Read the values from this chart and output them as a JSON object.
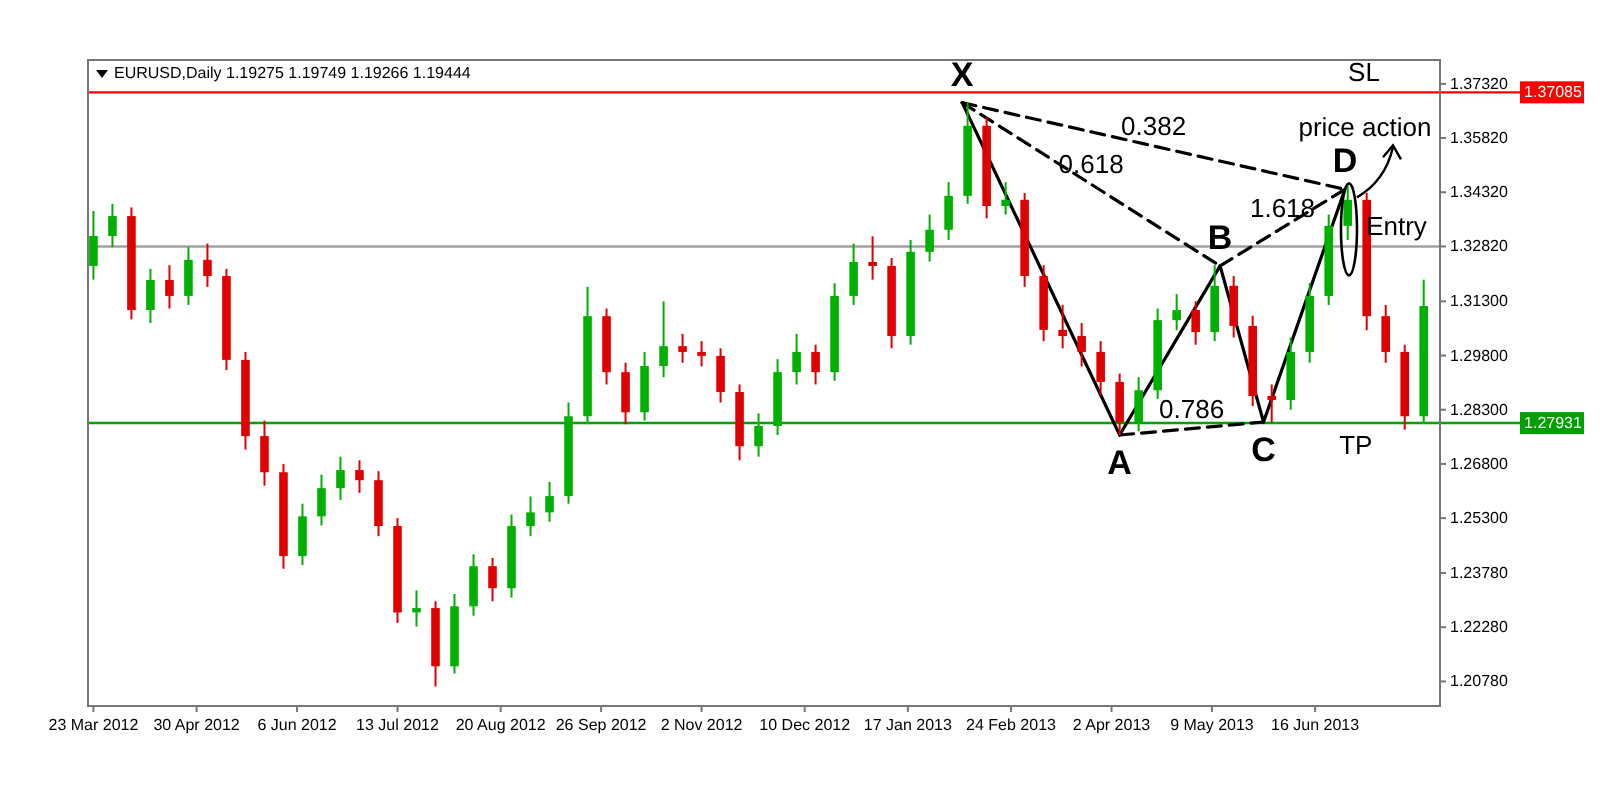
{
  "chart_data": {
    "type": "candlestick",
    "title": "EURUSD,Daily  1.19275 1.19749 1.19266 1.19444",
    "x": [
      "2012-03-23",
      "2012-03-30",
      "2012-04-06",
      "2012-04-13",
      "2012-04-20",
      "2012-04-27",
      "2012-05-04",
      "2012-05-11",
      "2012-05-18",
      "2012-05-25",
      "2012-06-01",
      "2012-06-08",
      "2012-06-15",
      "2012-06-22",
      "2012-06-29",
      "2012-07-06",
      "2012-07-13",
      "2012-07-20",
      "2012-07-27",
      "2012-08-03",
      "2012-08-10",
      "2012-08-17",
      "2012-08-24",
      "2012-08-31",
      "2012-09-07",
      "2012-09-14",
      "2012-09-21",
      "2012-09-28",
      "2012-10-05",
      "2012-10-12",
      "2012-10-19",
      "2012-10-26",
      "2012-11-02",
      "2012-11-09",
      "2012-11-16",
      "2012-11-23",
      "2012-11-30",
      "2012-12-07",
      "2012-12-14",
      "2012-12-21",
      "2012-12-28",
      "2013-01-04",
      "2013-01-11",
      "2013-01-18",
      "2013-01-25",
      "2013-02-01",
      "2013-02-08",
      "2013-02-15",
      "2013-02-22",
      "2013-03-01",
      "2013-03-08",
      "2013-03-15",
      "2013-03-22",
      "2013-03-29",
      "2013-04-05",
      "2013-04-12",
      "2013-04-19",
      "2013-04-26",
      "2013-05-03",
      "2013-05-10",
      "2013-05-17",
      "2013-05-24",
      "2013-05-31",
      "2013-06-07",
      "2013-06-14",
      "2013-06-21",
      "2013-06-28",
      "2013-07-05",
      "2013-07-12",
      "2013-07-19",
      "2013-07-26"
    ],
    "ohlc": [
      [
        1.3228,
        1.338,
        1.319,
        1.3311
      ],
      [
        1.3311,
        1.34,
        1.328,
        1.3366
      ],
      [
        1.3366,
        1.339,
        1.308,
        1.3106
      ],
      [
        1.3106,
        1.322,
        1.307,
        1.3189
      ],
      [
        1.3189,
        1.323,
        1.311,
        1.3145
      ],
      [
        1.3145,
        1.328,
        1.312,
        1.3245
      ],
      [
        1.3245,
        1.329,
        1.317,
        1.32
      ],
      [
        1.32,
        1.322,
        1.294,
        1.2968
      ],
      [
        1.2968,
        1.299,
        1.272,
        1.2757
      ],
      [
        1.2757,
        1.28,
        1.262,
        1.2657
      ],
      [
        1.2657,
        1.268,
        1.239,
        1.2425
      ],
      [
        1.2425,
        1.257,
        1.24,
        1.2535
      ],
      [
        1.2535,
        1.265,
        1.251,
        1.2613
      ],
      [
        1.2613,
        1.27,
        1.258,
        1.2663
      ],
      [
        1.2663,
        1.269,
        1.26,
        1.2635
      ],
      [
        1.2635,
        1.266,
        1.248,
        1.2508
      ],
      [
        1.2508,
        1.253,
        1.224,
        1.2269
      ],
      [
        1.2269,
        1.233,
        1.223,
        1.2281
      ],
      [
        1.2281,
        1.23,
        1.2064,
        1.212
      ],
      [
        1.212,
        1.232,
        1.21,
        1.2286
      ],
      [
        1.2286,
        1.243,
        1.226,
        1.2397
      ],
      [
        1.2397,
        1.242,
        1.23,
        1.2336
      ],
      [
        1.2336,
        1.254,
        1.231,
        1.2508
      ],
      [
        1.2508,
        1.259,
        1.248,
        1.2546
      ],
      [
        1.2546,
        1.263,
        1.252,
        1.2591
      ],
      [
        1.2591,
        1.285,
        1.257,
        1.2812
      ],
      [
        1.2812,
        1.317,
        1.279,
        1.3089
      ],
      [
        1.3089,
        1.311,
        1.29,
        1.2934
      ],
      [
        1.2934,
        1.296,
        1.279,
        1.2823
      ],
      [
        1.2823,
        1.299,
        1.28,
        1.2951
      ],
      [
        1.2951,
        1.313,
        1.292,
        1.3006
      ],
      [
        1.3006,
        1.304,
        1.296,
        1.299
      ],
      [
        1.299,
        1.302,
        1.295,
        1.2979
      ],
      [
        1.2979,
        1.3,
        1.285,
        1.2879
      ],
      [
        1.2879,
        1.29,
        1.269,
        1.2729
      ],
      [
        1.2729,
        1.282,
        1.27,
        1.2785
      ],
      [
        1.2785,
        1.297,
        1.276,
        1.2934
      ],
      [
        1.2934,
        1.304,
        1.29,
        1.299
      ],
      [
        1.299,
        1.301,
        1.29,
        1.2934
      ],
      [
        1.2934,
        1.318,
        1.291,
        1.3145
      ],
      [
        1.3145,
        1.329,
        1.312,
        1.3239
      ],
      [
        1.3239,
        1.331,
        1.319,
        1.3228
      ],
      [
        1.3228,
        1.325,
        1.3,
        1.3034
      ],
      [
        1.3034,
        1.33,
        1.301,
        1.3267
      ],
      [
        1.3267,
        1.337,
        1.324,
        1.3328
      ],
      [
        1.3328,
        1.346,
        1.33,
        1.3422
      ],
      [
        1.3422,
        1.368,
        1.34,
        1.3616
      ],
      [
        1.3616,
        1.364,
        1.336,
        1.3394
      ],
      [
        1.3394,
        1.346,
        1.337,
        1.3411
      ],
      [
        1.3411,
        1.343,
        1.317,
        1.32
      ],
      [
        1.32,
        1.323,
        1.302,
        1.3051
      ],
      [
        1.3051,
        1.312,
        1.3,
        1.3034
      ],
      [
        1.3034,
        1.307,
        1.295,
        1.299
      ],
      [
        1.299,
        1.302,
        1.287,
        1.2907
      ],
      [
        1.2907,
        1.293,
        1.276,
        1.2796
      ],
      [
        1.2796,
        1.292,
        1.277,
        1.2884
      ],
      [
        1.2884,
        1.311,
        1.286,
        1.3078
      ],
      [
        1.3078,
        1.315,
        1.305,
        1.3106
      ],
      [
        1.3106,
        1.313,
        1.301,
        1.3045
      ],
      [
        1.3045,
        1.323,
        1.302,
        1.3173
      ],
      [
        1.3173,
        1.32,
        1.303,
        1.3062
      ],
      [
        1.3062,
        1.309,
        1.284,
        1.2868
      ],
      [
        1.2868,
        1.29,
        1.2796,
        1.2857
      ],
      [
        1.2857,
        1.303,
        1.283,
        1.299
      ],
      [
        1.299,
        1.318,
        1.296,
        1.3145
      ],
      [
        1.3145,
        1.337,
        1.312,
        1.3339
      ],
      [
        1.3339,
        1.345,
        1.33,
        1.3411
      ],
      [
        1.3411,
        1.343,
        1.305,
        1.3089
      ],
      [
        1.3089,
        1.312,
        1.296,
        1.299
      ],
      [
        1.299,
        1.301,
        1.2775,
        1.2812
      ],
      [
        1.2812,
        1.319,
        1.279,
        1.3117
      ]
    ],
    "colors": [
      "#00b000",
      "#00b000",
      "#e00000",
      "#00b000",
      "#e00000",
      "#00b000",
      "#e00000",
      "#e00000",
      "#e00000",
      "#e00000",
      "#e00000",
      "#00b000",
      "#00b000",
      "#00b000",
      "#e00000",
      "#e00000",
      "#e00000",
      "#00b000",
      "#e00000",
      "#00b000",
      "#00b000",
      "#e00000",
      "#00b000",
      "#00b000",
      "#00b000",
      "#00b000",
      "#00b000",
      "#e00000",
      "#e00000",
      "#00b000",
      "#00b000",
      "#e00000",
      "#e00000",
      "#e00000",
      "#e00000",
      "#00b000",
      "#00b000",
      "#00b000",
      "#e00000",
      "#00b000",
      "#00b000",
      "#e00000",
      "#e00000",
      "#00b000",
      "#00b000",
      "#00b000",
      "#00b000",
      "#e00000",
      "#00b000",
      "#e00000",
      "#e00000",
      "#e00000",
      "#e00000",
      "#e00000",
      "#e00000",
      "#00b000",
      "#00b000",
      "#00b000",
      "#e00000",
      "#00b000",
      "#e00000",
      "#e00000",
      "#e00000",
      "#00b000",
      "#00b000",
      "#00b000",
      "#00b000",
      "#e00000",
      "#e00000",
      "#e00000",
      "#00b000"
    ],
    "series": [
      {
        "type": "line",
        "color": "#000000",
        "line_style": "solid",
        "x": [
          "2013-02-06",
          "2013-04-05",
          "2013-05-12",
          "2013-05-28",
          "2013-06-27"
        ],
        "values": [
          1.368,
          1.276,
          1.3228,
          1.2796,
          1.344
        ]
      },
      {
        "type": "line",
        "color": "#000000",
        "line_style": "dashed",
        "x": [
          "2013-02-06",
          "2013-05-12"
        ],
        "values": [
          1.368,
          1.3228
        ]
      },
      {
        "type": "line",
        "color": "#000000",
        "line_style": "dashed",
        "x": [
          "2013-02-06",
          "2013-06-27"
        ],
        "values": [
          1.368,
          1.344
        ]
      },
      {
        "type": "line",
        "color": "#000000",
        "line_style": "dashed",
        "x": [
          "2013-05-12",
          "2013-06-27"
        ],
        "values": [
          1.3228,
          1.344
        ]
      },
      {
        "type": "line",
        "color": "#000000",
        "line_style": "dashed",
        "x": [
          "2013-04-05",
          "2013-05-28"
        ],
        "values": [
          1.276,
          1.2796
        ]
      }
    ],
    "xlim": [
      "2012-03-21",
      "2013-08-01"
    ],
    "xticks": [
      {
        "value": "2012-03-23",
        "label": "23 Mar 2012"
      },
      {
        "value": "2012-04-30",
        "label": "30 Apr 2012"
      },
      {
        "value": "2012-06-06",
        "label": "6 Jun 2012"
      },
      {
        "value": "2012-07-13",
        "label": "13 Jul 2012"
      },
      {
        "value": "2012-08-20",
        "label": "20 Aug 2012"
      },
      {
        "value": "2012-09-26",
        "label": "26 Sep 2012"
      },
      {
        "value": "2012-11-02",
        "label": "2 Nov 2012"
      },
      {
        "value": "2012-12-10",
        "label": "10 Dec 2012"
      },
      {
        "value": "2013-01-17",
        "label": "17 Jan 2013"
      },
      {
        "value": "2013-02-24",
        "label": "24 Feb 2013"
      },
      {
        "value": "2013-04-02",
        "label": "2 Apr 2013"
      },
      {
        "value": "2013-05-09",
        "label": "9 May 2013"
      },
      {
        "value": "2013-06-16",
        "label": "16 Jun 2013"
      }
    ],
    "ylim": [
      1.201,
      1.3798
    ],
    "yticks": [
      {
        "value": 1.3732,
        "label": "1.37320"
      },
      {
        "value": 1.3582,
        "label": "1.35820"
      },
      {
        "value": 1.3432,
        "label": "1.34320"
      },
      {
        "value": 1.3282,
        "label": "1.32820"
      },
      {
        "value": 1.313,
        "label": "1.31300"
      },
      {
        "value": 1.298,
        "label": "1.29800"
      },
      {
        "value": 1.283,
        "label": "1.28300"
      },
      {
        "value": 1.268,
        "label": "1.26800"
      },
      {
        "value": 1.253,
        "label": "1.25300"
      },
      {
        "value": 1.2378,
        "label": "1.23780"
      },
      {
        "value": 1.2228,
        "label": "1.22280"
      },
      {
        "value": 1.2078,
        "label": "1.20780"
      }
    ],
    "ref_lines": [
      {
        "axis": "y",
        "value": 1.37085,
        "label": "1.37085",
        "color": "#ff0000"
      },
      {
        "axis": "y",
        "value": 1.3282,
        "color": "#a0a0a0"
      },
      {
        "axis": "y",
        "value": 1.27931,
        "label": "1.27931",
        "color": "#00a000"
      }
    ],
    "annotations": [
      {
        "text": "X",
        "x": "2013-02-06",
        "y": 1.368
      },
      {
        "text": "A",
        "x": "2013-04-05",
        "y": 1.276
      },
      {
        "text": "B",
        "x": "2013-05-12",
        "y": 1.3228
      },
      {
        "text": "C",
        "x": "2013-05-28",
        "y": 1.2796
      },
      {
        "text": "D",
        "x": "2013-06-27",
        "y": 1.344
      },
      {
        "text": "0.382",
        "x": "2013-04-17T12:00",
        "y": 1.356
      },
      {
        "text": "0.618",
        "x": "2013-03-25T12:00",
        "y": 1.3454
      },
      {
        "text": "1.618",
        "x": "2013-06-04",
        "y": 1.3334
      },
      {
        "text": "0.786",
        "x": "2013-05-01T12:00",
        "y": 1.2778
      },
      {
        "text": "SL",
        "x": "2013-07-04",
        "y": 1.37085
      },
      "price action",
      {
        "text": "Entry",
        "x": "2013-07-16",
        "y": 1.3282
      },
      {
        "text": "TP",
        "x": "2013-07-01",
        "y": 1.27931
      }
    ],
    "grid": false
  }
}
